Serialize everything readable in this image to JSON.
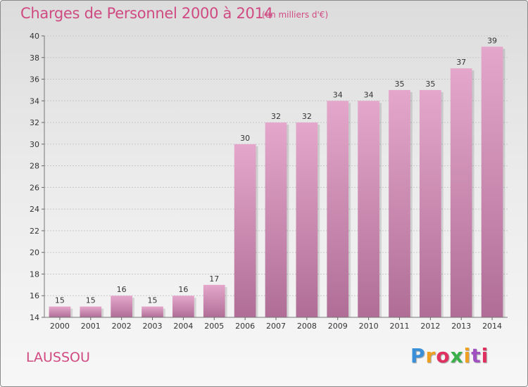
{
  "chart_data": {
    "type": "bar",
    "title": "Charges de Personnel 2000 à 2014",
    "subtitle": "(en milliers d'€)",
    "categories": [
      "2000",
      "2001",
      "2002",
      "2003",
      "2004",
      "2005",
      "2006",
      "2007",
      "2008",
      "2009",
      "2010",
      "2011",
      "2012",
      "2013",
      "2014"
    ],
    "values": [
      15,
      15,
      16,
      15,
      16,
      17,
      30,
      32,
      32,
      34,
      34,
      35,
      35,
      37,
      39
    ],
    "ylim": [
      14,
      40
    ],
    "yticks": [
      14,
      16,
      18,
      20,
      22,
      24,
      26,
      28,
      30,
      32,
      34,
      36,
      38,
      40
    ],
    "grid": true,
    "bar_color_top": "#e4a7cb",
    "bar_color_bottom": "#b06e97"
  },
  "footer": {
    "commune": "LAUSSOU",
    "logo_letters": [
      "P",
      "r",
      "o",
      "x",
      "i",
      "t",
      "i"
    ]
  },
  "colors": {
    "accent": "#d04a82"
  }
}
